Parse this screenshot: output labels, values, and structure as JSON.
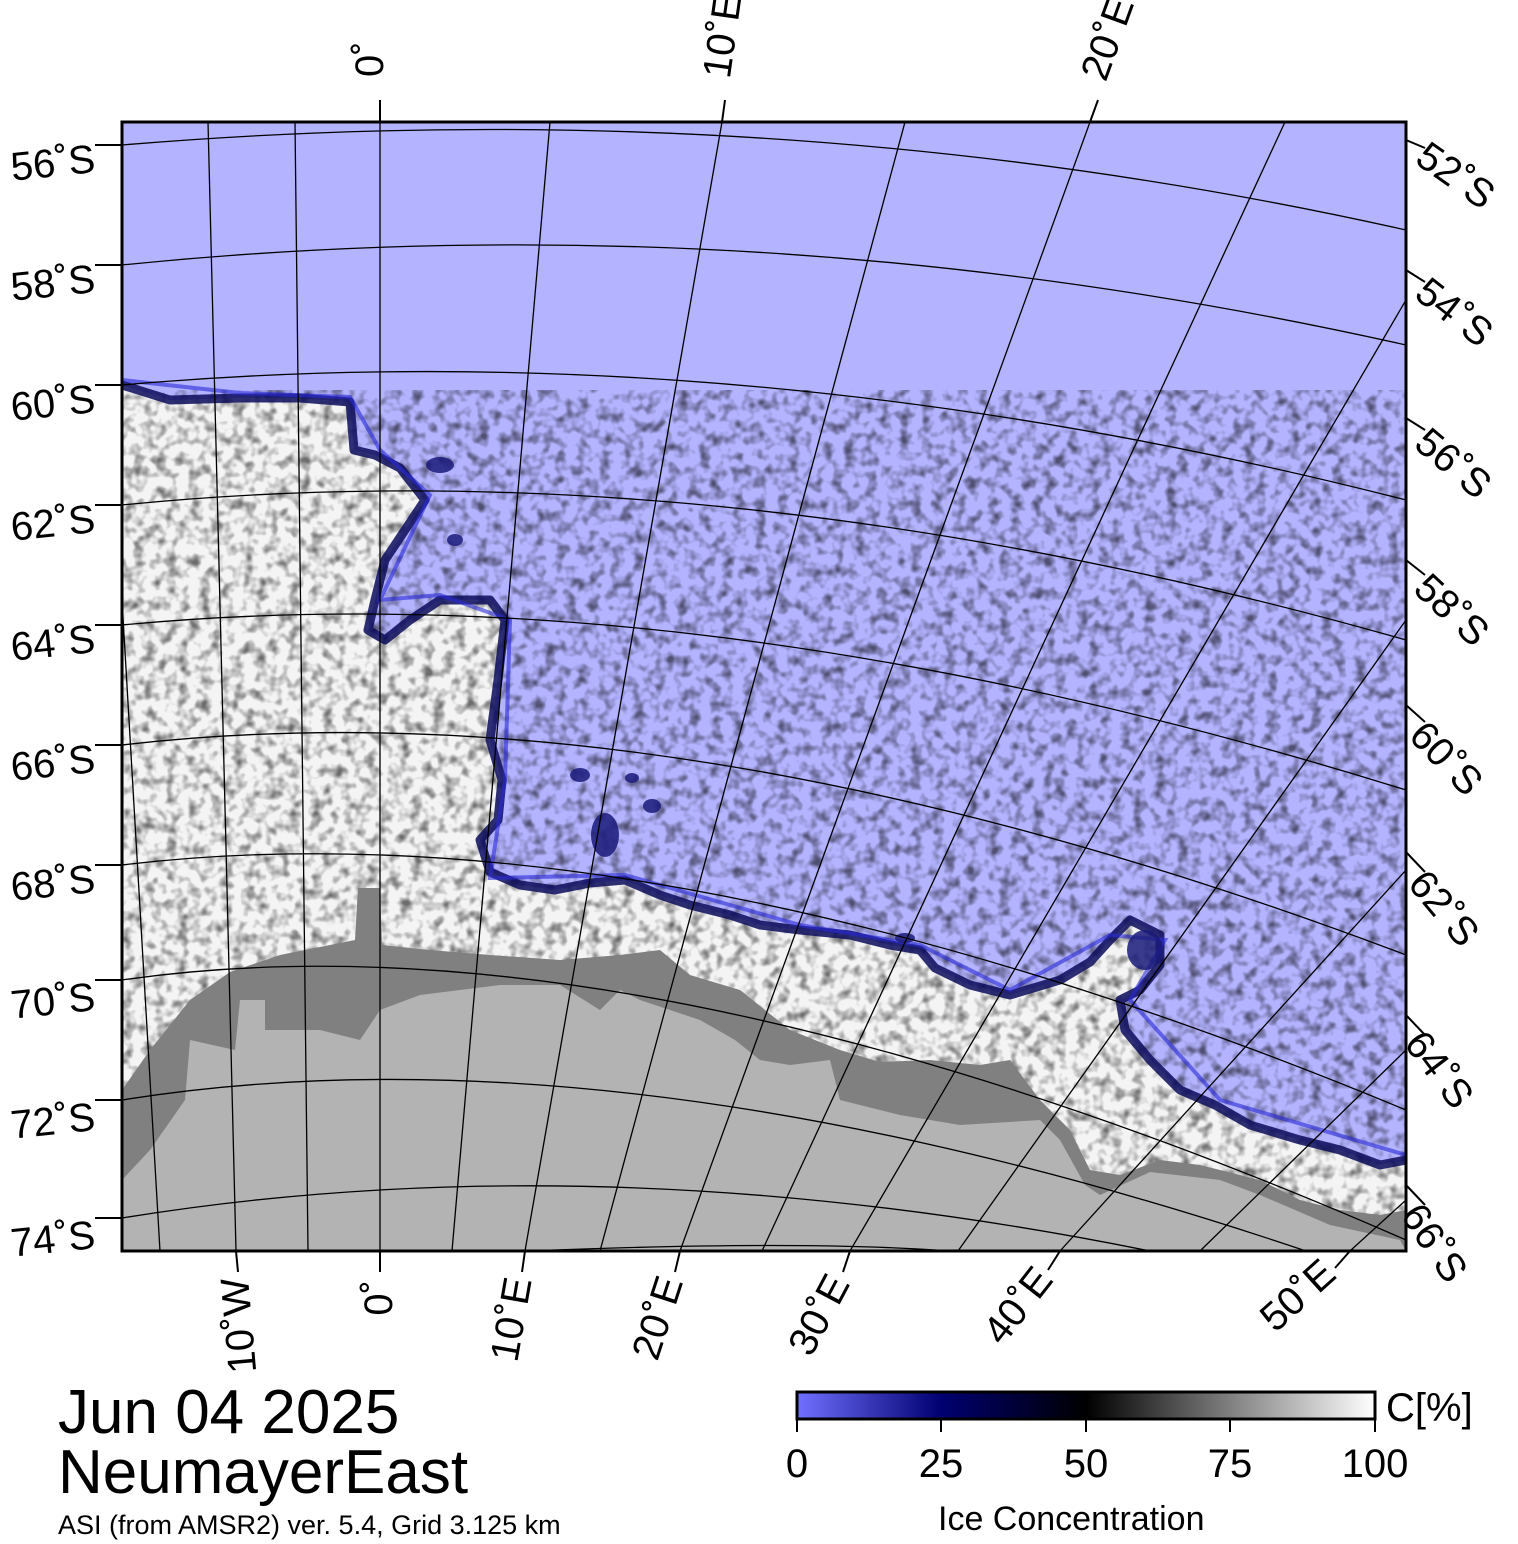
{
  "title": {
    "date": "Jun 04 2025",
    "region": "NeumayerEast",
    "source": "ASI (from AMSR2) ver. 5.4,  Grid 3.125 km"
  },
  "map": {
    "colors": {
      "ocean": "#b3b3ff",
      "land": "#b3b3b3",
      "ice_shelf": "#808080",
      "sea_ice": "#f4f4f4",
      "ice_edge": "#0a0a5a",
      "grid": "#000000"
    },
    "lat_labels_left": [
      "56˚S",
      "58˚S",
      "60˚S",
      "62˚S",
      "64˚S",
      "66˚S",
      "68˚S",
      "70˚S",
      "72˚S",
      "74˚S"
    ],
    "lat_labels_right": [
      "52˚S",
      "54˚S",
      "56˚S",
      "58˚S",
      "60˚S",
      "62˚S",
      "64˚S",
      "66˚S"
    ],
    "lon_labels_top": [
      "0˚",
      "10˚E",
      "20˚E"
    ],
    "lon_labels_bottom": [
      "10˚W",
      "0˚",
      "10˚E",
      "20˚E",
      "30˚E",
      "40˚E",
      "50˚E"
    ]
  },
  "colorbar": {
    "title": "Ice Concentration",
    "unit": "C[%]",
    "ticks": [
      "0",
      "25",
      "50",
      "75",
      "100"
    ],
    "stops": [
      "#7070ff",
      "#000070",
      "#000000",
      "#808080",
      "#ffffff"
    ]
  }
}
